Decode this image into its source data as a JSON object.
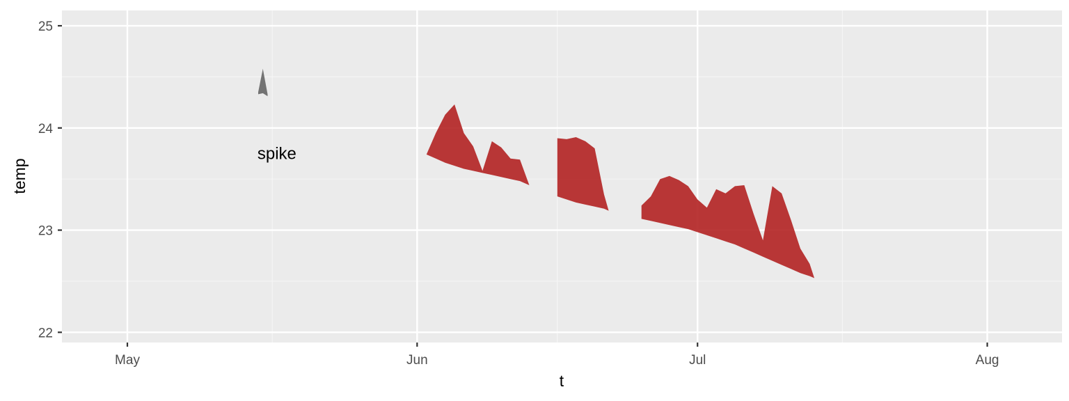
{
  "chart_data": {
    "type": "area",
    "title": "",
    "xlabel": "t",
    "ylabel": "temp",
    "x_type": "date",
    "x_ticks": [
      "May",
      "Jun",
      "Jul",
      "Aug"
    ],
    "y_ticks": [
      "22",
      "23",
      "24",
      "25"
    ],
    "xlim": [
      "2023-04-24",
      "2023-08-09"
    ],
    "ylim": [
      21.9,
      25.15
    ],
    "grid": true,
    "legend": "none",
    "annotations": [
      {
        "text": "spike",
        "x": "2023-05-17",
        "y": 23.75
      }
    ],
    "series": [
      {
        "color": "#666666",
        "points": [
          {
            "x": "2023-05-15",
            "upper": 24.35,
            "lower": 24.33
          },
          {
            "x": "2023-05-15 12:00",
            "upper": 24.58,
            "lower": 24.34
          },
          {
            "x": "2023-05-16",
            "upper": 24.33,
            "lower": 24.31
          }
        ]
      },
      {
        "color": "#b22222",
        "points": [
          {
            "x": "2023-06-02",
            "upper": 23.74,
            "lower": 23.74
          },
          {
            "x": "2023-06-03",
            "upper": 23.95,
            "lower": 23.7
          },
          {
            "x": "2023-06-04",
            "upper": 24.13,
            "lower": 23.66
          },
          {
            "x": "2023-06-05",
            "upper": 24.23,
            "lower": 23.63
          },
          {
            "x": "2023-06-06",
            "upper": 23.95,
            "lower": 23.6
          },
          {
            "x": "2023-06-07",
            "upper": 23.82,
            "lower": 23.58
          },
          {
            "x": "2023-06-08",
            "upper": 23.58,
            "lower": 23.56
          },
          {
            "x": "2023-06-09",
            "upper": 23.87,
            "lower": 23.54
          },
          {
            "x": "2023-06-10",
            "upper": 23.81,
            "lower": 23.52
          },
          {
            "x": "2023-06-11",
            "upper": 23.7,
            "lower": 23.5
          },
          {
            "x": "2023-06-12",
            "upper": 23.69,
            "lower": 23.48
          },
          {
            "x": "2023-06-13",
            "upper": 23.44,
            "lower": 23.44
          }
        ]
      },
      {
        "color": "#b22222",
        "points": [
          {
            "x": "2023-06-16",
            "upper": 23.9,
            "lower": 23.33
          },
          {
            "x": "2023-06-17",
            "upper": 23.89,
            "lower": 23.3
          },
          {
            "x": "2023-06-18",
            "upper": 23.91,
            "lower": 23.27
          },
          {
            "x": "2023-06-19",
            "upper": 23.87,
            "lower": 23.25
          },
          {
            "x": "2023-06-20",
            "upper": 23.8,
            "lower": 23.23
          },
          {
            "x": "2023-06-21",
            "upper": 23.35,
            "lower": 23.21
          },
          {
            "x": "2023-06-21 12:00",
            "upper": 23.19,
            "lower": 23.19
          }
        ]
      },
      {
        "color": "#b22222",
        "points": [
          {
            "x": "2023-06-25",
            "upper": 23.24,
            "lower": 23.11
          },
          {
            "x": "2023-06-26",
            "upper": 23.33,
            "lower": 23.09
          },
          {
            "x": "2023-06-27",
            "upper": 23.5,
            "lower": 23.07
          },
          {
            "x": "2023-06-28",
            "upper": 23.53,
            "lower": 23.05
          },
          {
            "x": "2023-06-29",
            "upper": 23.49,
            "lower": 23.03
          },
          {
            "x": "2023-06-30",
            "upper": 23.43,
            "lower": 23.01
          },
          {
            "x": "2023-07-01",
            "upper": 23.3,
            "lower": 22.98
          },
          {
            "x": "2023-07-02",
            "upper": 23.22,
            "lower": 22.95
          },
          {
            "x": "2023-07-03",
            "upper": 23.4,
            "lower": 22.92
          },
          {
            "x": "2023-07-04",
            "upper": 23.36,
            "lower": 22.89
          },
          {
            "x": "2023-07-05",
            "upper": 23.43,
            "lower": 22.86
          },
          {
            "x": "2023-07-06",
            "upper": 23.44,
            "lower": 22.82
          },
          {
            "x": "2023-07-07",
            "upper": 23.16,
            "lower": 22.78
          },
          {
            "x": "2023-07-08",
            "upper": 22.9,
            "lower": 22.74
          },
          {
            "x": "2023-07-09",
            "upper": 23.43,
            "lower": 22.7
          },
          {
            "x": "2023-07-10",
            "upper": 23.36,
            "lower": 22.66
          },
          {
            "x": "2023-07-11",
            "upper": 23.1,
            "lower": 22.62
          },
          {
            "x": "2023-07-12",
            "upper": 22.82,
            "lower": 22.58
          },
          {
            "x": "2023-07-13",
            "upper": 22.67,
            "lower": 22.55
          },
          {
            "x": "2023-07-13 12:00",
            "upper": 22.53,
            "lower": 22.53
          }
        ]
      }
    ]
  }
}
